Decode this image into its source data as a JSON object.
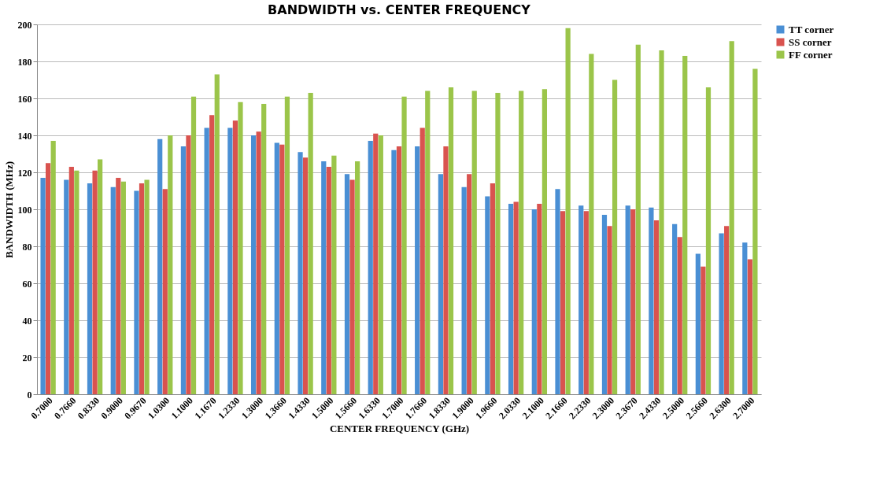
{
  "chart_data": {
    "type": "bar",
    "title": "BANDWIDTH vs. CENTER FREQUENCY",
    "xlabel": "CENTER FREQUENCY (GHz)",
    "ylabel": "BANDWIDTH (MHz)",
    "categories": [
      "0.7000",
      "0.7660",
      "0.8330",
      "0.9000",
      "0.9670",
      "1.0300",
      "1.1000",
      "1.1670",
      "1.2330",
      "1.3000",
      "1.3660",
      "1.4330",
      "1.5000",
      "1.5660",
      "1.6330",
      "1.7000",
      "1.7660",
      "1.8330",
      "1.9000",
      "1.9660",
      "2.0330",
      "2.1000",
      "2.1660",
      "2.2330",
      "2.3000",
      "2.3670",
      "2.4330",
      "2.5000",
      "2.5660",
      "2.6300",
      "2.7000"
    ],
    "series": [
      {
        "name": "TT corner",
        "color": "#4a8fd4",
        "values": [
          117,
          116,
          114,
          112,
          110,
          138,
          134,
          144,
          144,
          140,
          136,
          131,
          126,
          119,
          137,
          132,
          134,
          119,
          112,
          107,
          103,
          100,
          111,
          102,
          97,
          102,
          101,
          92,
          76,
          87,
          82
        ]
      },
      {
        "name": "SS corner",
        "color": "#d9534f",
        "values": [
          125,
          123,
          121,
          117,
          114,
          111,
          140,
          151,
          148,
          142,
          135,
          128,
          123,
          116,
          141,
          134,
          144,
          134,
          119,
          114,
          104,
          103,
          99,
          99,
          91,
          100,
          94,
          85,
          69,
          91,
          73
        ]
      },
      {
        "name": "FF corner",
        "color": "#9bc54a",
        "values": [
          137,
          121,
          127,
          115,
          116,
          140,
          161,
          173,
          158,
          157,
          161,
          163,
          129,
          126,
          140,
          161,
          164,
          166,
          164,
          163,
          164,
          165,
          198,
          184,
          170,
          189,
          186,
          183,
          166,
          191,
          176
        ]
      }
    ],
    "ylim": [
      0,
      200
    ],
    "yticks": [
      0,
      20,
      40,
      60,
      80,
      100,
      120,
      140,
      160,
      180,
      200
    ],
    "grid": "y",
    "legend": "right"
  }
}
